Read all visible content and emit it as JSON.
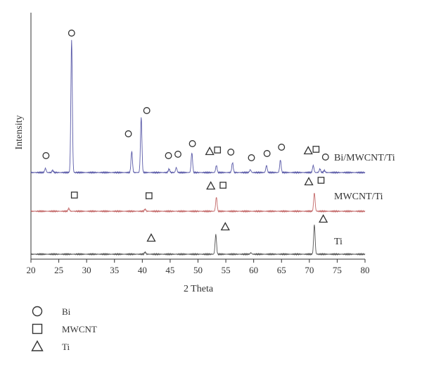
{
  "chart_data": {
    "type": "line",
    "title": "",
    "xlabel": "2 Theta",
    "ylabel": "Intensity",
    "xlim": [
      20,
      80
    ],
    "x_ticks": [
      20,
      25,
      30,
      35,
      40,
      45,
      50,
      55,
      60,
      65,
      70,
      75,
      80
    ],
    "grid": false,
    "legend_position": "bottom-left",
    "legend": [
      {
        "symbol": "circle",
        "label": "Bi"
      },
      {
        "symbol": "square",
        "label": "MWCNT"
      },
      {
        "symbol": "triangle",
        "label": "Ti"
      }
    ],
    "series": [
      {
        "name": "Bi/MWCNT/Ti",
        "color": "#5a5aa8",
        "peaks": [
          {
            "x": 22.6,
            "h": 6
          },
          {
            "x": 23.9,
            "h": 3
          },
          {
            "x": 27.3,
            "h": 188
          },
          {
            "x": 38.1,
            "h": 30
          },
          {
            "x": 39.8,
            "h": 78
          },
          {
            "x": 44.8,
            "h": 5
          },
          {
            "x": 46.1,
            "h": 7
          },
          {
            "x": 48.9,
            "h": 28
          },
          {
            "x": 53.3,
            "h": 10
          },
          {
            "x": 56.2,
            "h": 14
          },
          {
            "x": 59.4,
            "h": 4
          },
          {
            "x": 62.3,
            "h": 10
          },
          {
            "x": 64.8,
            "h": 18
          },
          {
            "x": 70.7,
            "h": 10
          },
          {
            "x": 71.9,
            "h": 5
          },
          {
            "x": 72.7,
            "h": 3
          }
        ],
        "markers": [
          {
            "symbol": "circle",
            "x": 22.7,
            "level": 14
          },
          {
            "symbol": "circle",
            "x": 27.3,
            "level": 188
          },
          {
            "symbol": "circle",
            "x": 37.5,
            "level": 45
          },
          {
            "symbol": "circle",
            "x": 40.8,
            "level": 78
          },
          {
            "symbol": "circle",
            "x": 44.7,
            "level": 14
          },
          {
            "symbol": "circle",
            "x": 46.4,
            "level": 16
          },
          {
            "symbol": "circle",
            "x": 49.0,
            "level": 31
          },
          {
            "symbol": "triangle",
            "x": 52.1,
            "level": 20
          },
          {
            "symbol": "square",
            "x": 53.5,
            "level": 22
          },
          {
            "symbol": "circle",
            "x": 55.9,
            "level": 19
          },
          {
            "symbol": "circle",
            "x": 59.6,
            "level": 11
          },
          {
            "symbol": "circle",
            "x": 62.4,
            "level": 17
          },
          {
            "symbol": "circle",
            "x": 65.0,
            "level": 26
          },
          {
            "symbol": "triangle",
            "x": 69.8,
            "level": 21
          },
          {
            "symbol": "square",
            "x": 71.2,
            "level": 23
          },
          {
            "symbol": "circle",
            "x": 72.9,
            "level": 12
          }
        ]
      },
      {
        "name": "MWCNT/Ti",
        "color": "#c46a6a",
        "peaks": [
          {
            "x": 26.8,
            "h": 4
          },
          {
            "x": 40.5,
            "h": 3
          },
          {
            "x": 53.3,
            "h": 20
          },
          {
            "x": 70.9,
            "h": 26
          }
        ],
        "markers": [
          {
            "symbol": "square",
            "x": 27.8,
            "level": 13
          },
          {
            "symbol": "square",
            "x": 41.2,
            "level": 12
          },
          {
            "symbol": "triangle",
            "x": 52.3,
            "level": 26
          },
          {
            "symbol": "square",
            "x": 54.5,
            "level": 27
          },
          {
            "symbol": "triangle",
            "x": 69.9,
            "level": 32
          },
          {
            "symbol": "square",
            "x": 72.1,
            "level": 34
          }
        ]
      },
      {
        "name": "Ti",
        "color": "#555555",
        "peaks": [
          {
            "x": 40.5,
            "h": 3
          },
          {
            "x": 53.2,
            "h": 28
          },
          {
            "x": 59.5,
            "h": 2
          },
          {
            "x": 70.9,
            "h": 42
          }
        ],
        "markers": [
          {
            "symbol": "triangle",
            "x": 41.6,
            "level": 13
          },
          {
            "symbol": "triangle",
            "x": 54.9,
            "level": 29
          },
          {
            "symbol": "triangle",
            "x": 72.5,
            "level": 40
          }
        ]
      }
    ]
  }
}
